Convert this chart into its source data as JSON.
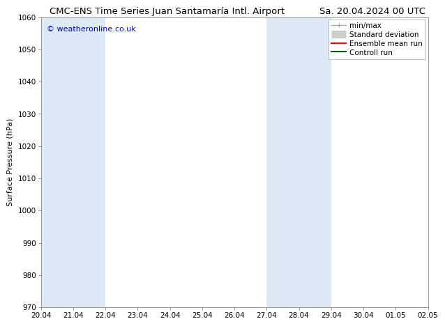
{
  "title_left": "CMC-ENS Time Series Juan Santamaría Intl. Airport",
  "title_right": "Sa. 20.04.2024 00 UTC",
  "ylabel": "Surface Pressure (hPa)",
  "xlabel_ticks": [
    "20.04",
    "21.04",
    "22.04",
    "23.04",
    "24.04",
    "25.04",
    "26.04",
    "27.04",
    "28.04",
    "29.04",
    "30.04",
    "01.05",
    "02.05"
  ],
  "ylim": [
    970,
    1060
  ],
  "yticks": [
    970,
    980,
    990,
    1000,
    1010,
    1020,
    1030,
    1040,
    1050,
    1060
  ],
  "background_color": "#ffffff",
  "plot_bg_color": "#ffffff",
  "shaded_bands": [
    {
      "x_start": 20,
      "x_end": 21,
      "color": "#ddeaf6"
    },
    {
      "x_start": 21,
      "x_end": 22,
      "color": "#ddeaf6"
    },
    {
      "x_start": 27,
      "x_end": 28,
      "color": "#ddeaf6"
    },
    {
      "x_start": 28,
      "x_end": 29,
      "color": "#ddeaf6"
    }
  ],
  "legend_items": [
    {
      "label": "min/max",
      "color": "#aaaaaa",
      "lw": 1.0,
      "style": "line_with_caps"
    },
    {
      "label": "Standard deviation",
      "color": "#cccccc",
      "lw": 8,
      "style": "thick_line"
    },
    {
      "label": "Ensemble mean run",
      "color": "#ff0000",
      "lw": 1.5,
      "style": "line"
    },
    {
      "label": "Controll run",
      "color": "#006400",
      "lw": 1.5,
      "style": "line"
    }
  ],
  "watermark": "© weatheronline.co.uk",
  "watermark_color": "#0000cc",
  "title_fontsize": 9.5,
  "axis_label_fontsize": 8,
  "tick_fontsize": 7.5,
  "legend_fontsize": 7.5,
  "watermark_fontsize": 8,
  "x_positions": [
    20,
    21,
    22,
    23,
    24,
    25,
    26,
    27,
    28,
    29,
    30,
    31,
    32
  ],
  "xlim": [
    20,
    32
  ],
  "grid_color": "#e0e0e0"
}
